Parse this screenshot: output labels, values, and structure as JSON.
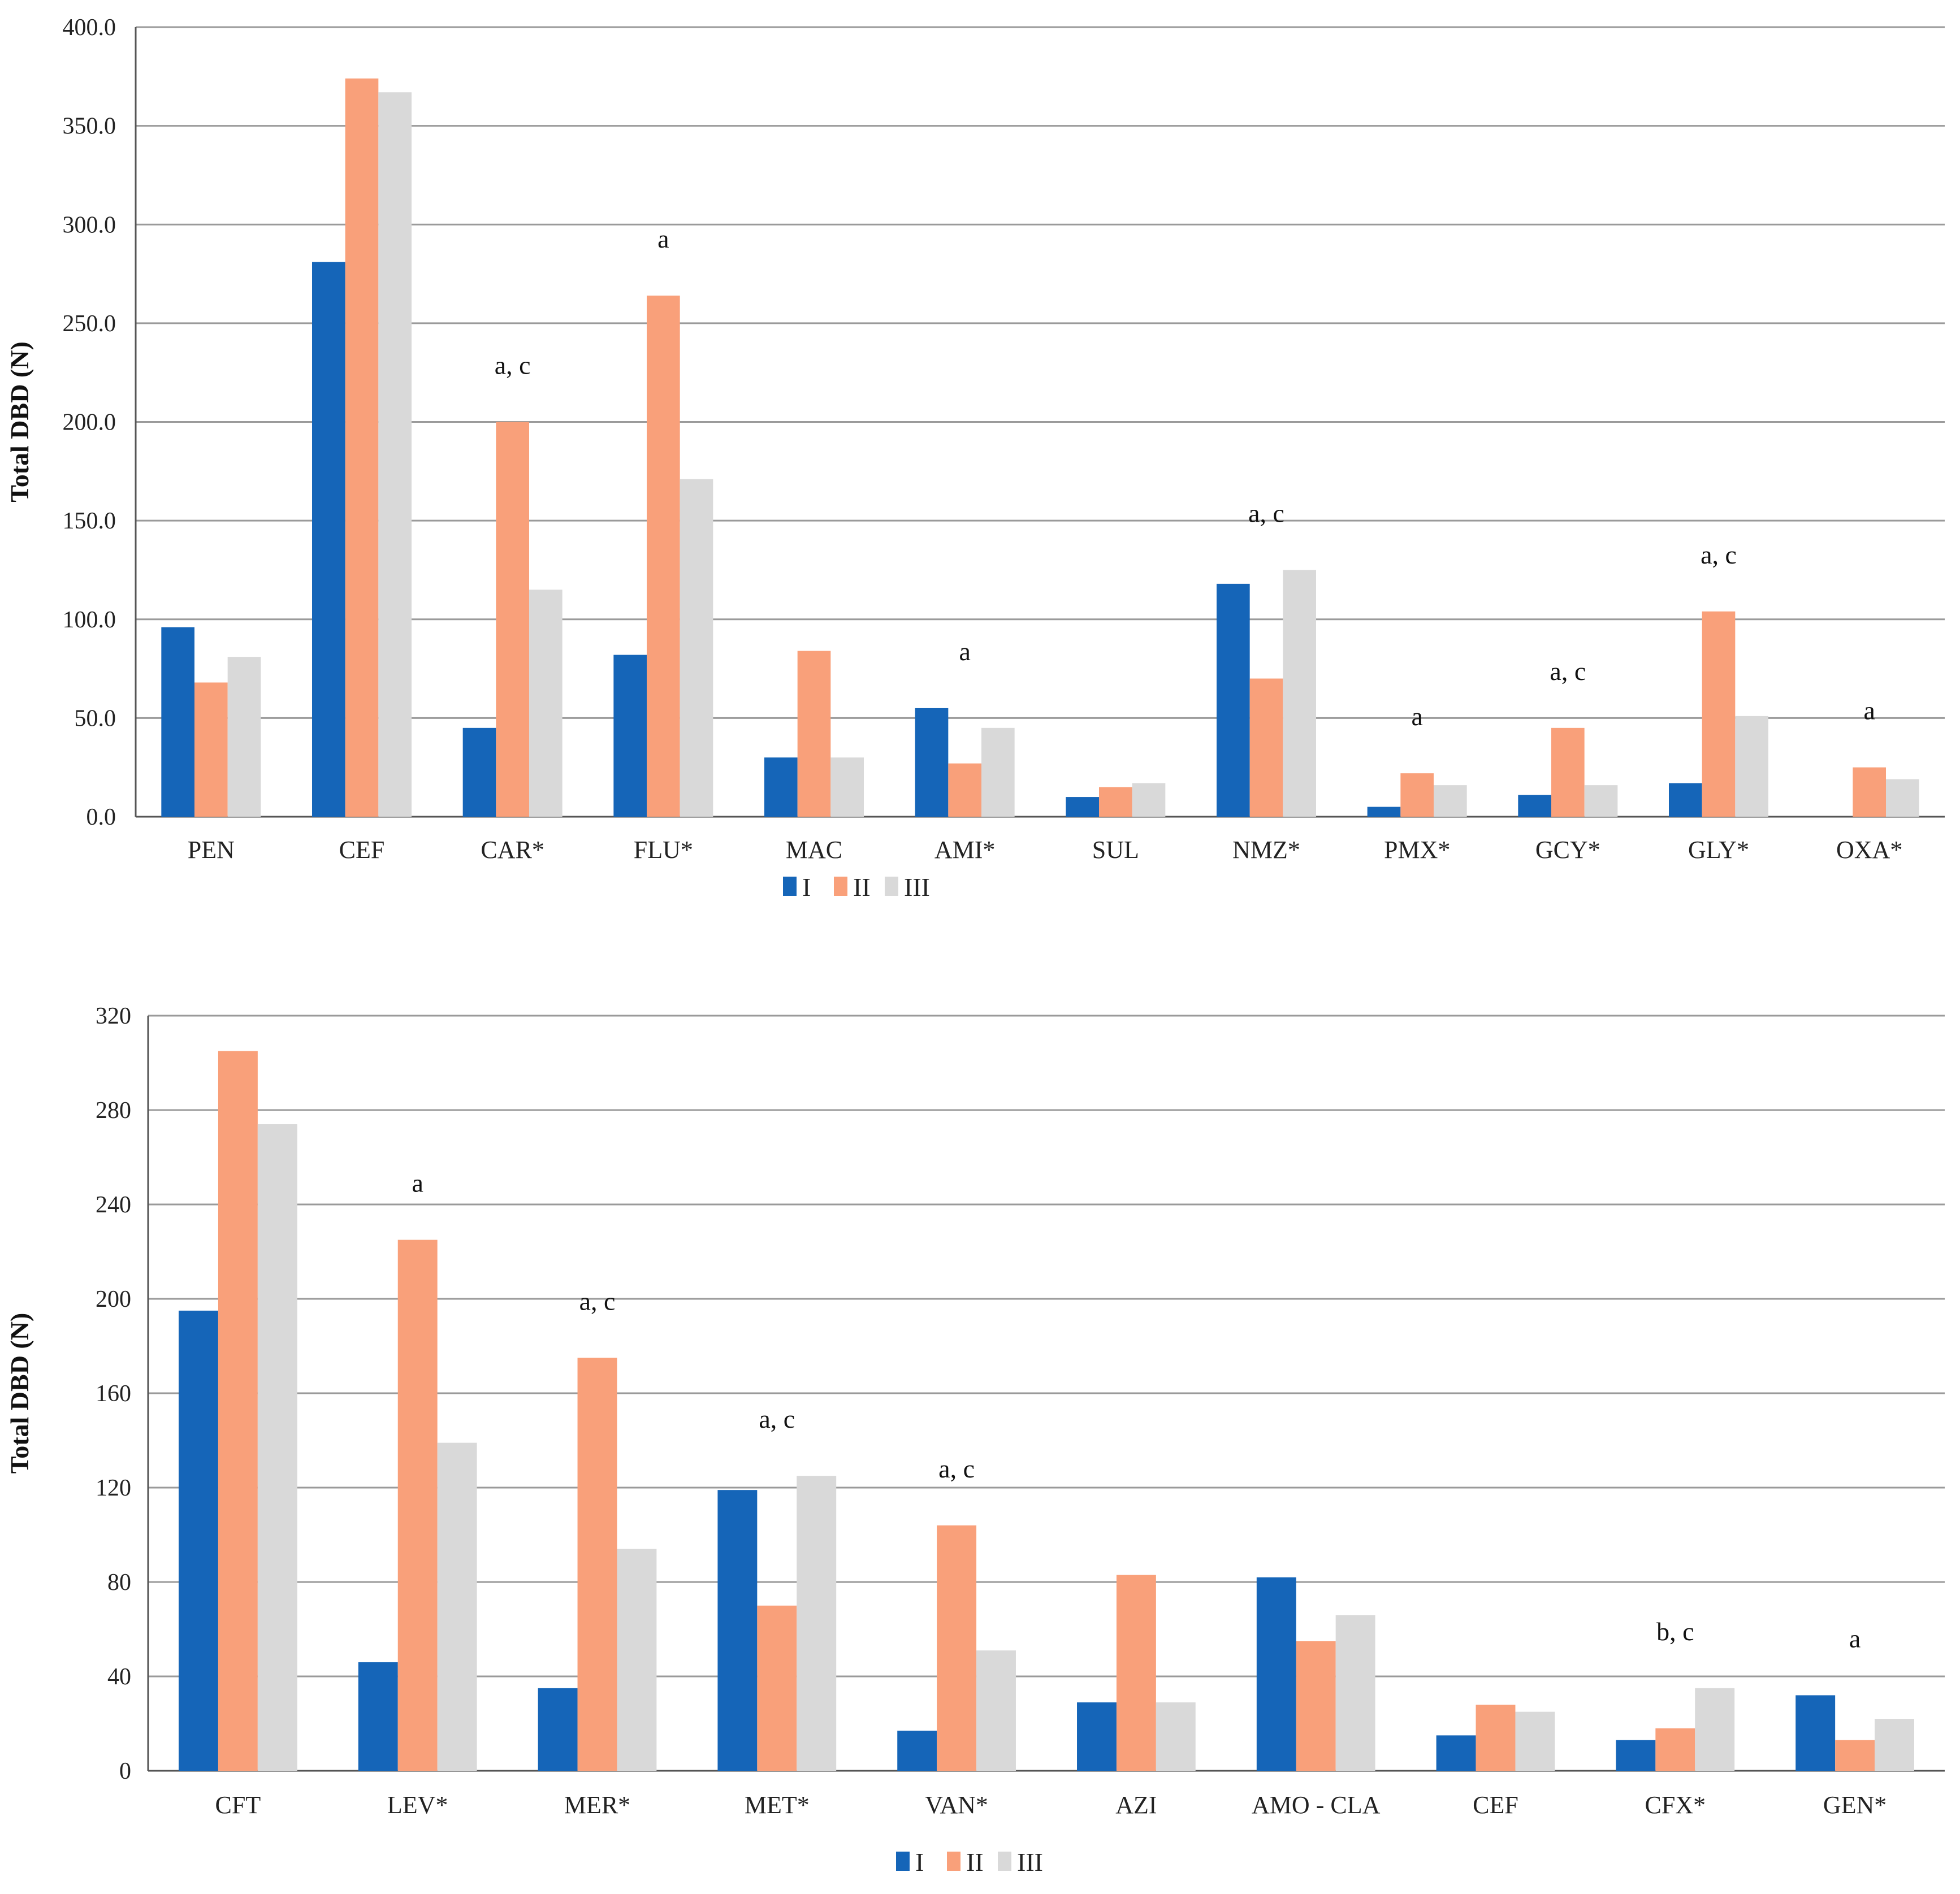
{
  "colors": {
    "I": "#1565b8",
    "II": "#f9a07a",
    "III": "#d9d9d9",
    "grid": "#9a9a9a",
    "axis": "#555555"
  },
  "chart_data": [
    {
      "type": "bar",
      "title": "",
      "xlabel": "",
      "ylabel": "Total DBD (N)",
      "ylim": [
        0,
        400
      ],
      "yticks": [
        "0.0",
        "50.0",
        "100.0",
        "150.0",
        "200.0",
        "250.0",
        "300.0",
        "350.0",
        "400.0"
      ],
      "ytick_values": [
        0,
        50,
        100,
        150,
        200,
        250,
        300,
        350,
        400
      ],
      "grid": true,
      "legend_position": "bottom",
      "categories": [
        "PEN",
        "CEF",
        "CAR*",
        "FLU*",
        "MAC",
        "AMI*",
        "SUL",
        "NMZ*",
        "PMX*",
        "GCY*",
        "GLY*",
        "OXA*"
      ],
      "series": [
        {
          "name": "I",
          "values": [
            96,
            281,
            45,
            82,
            30,
            55,
            10,
            118,
            5,
            11,
            17,
            0
          ]
        },
        {
          "name": "II",
          "values": [
            68,
            374,
            200,
            264,
            84,
            27,
            15,
            70,
            22,
            45,
            104,
            25
          ]
        },
        {
          "name": "III",
          "values": [
            81,
            367,
            115,
            171,
            30,
            45,
            17,
            125,
            16,
            16,
            51,
            19
          ]
        }
      ],
      "annotations": [
        "",
        "",
        "a, c",
        "a",
        "",
        "a",
        "",
        "a, c",
        "a",
        "a, c",
        "a, c",
        "a"
      ]
    },
    {
      "type": "bar",
      "title": "",
      "xlabel": "",
      "ylabel": "Total DBD (N)",
      "ylim": [
        0,
        320
      ],
      "yticks": [
        "0",
        "40",
        "80",
        "120",
        "160",
        "200",
        "240",
        "280",
        "320"
      ],
      "ytick_values": [
        0,
        40,
        80,
        120,
        160,
        200,
        240,
        280,
        320
      ],
      "grid": true,
      "legend_position": "bottom",
      "categories": [
        "CFT",
        "LEV*",
        "MER*",
        "MET*",
        "VAN*",
        "AZI",
        "AMO - CLA",
        "CEF",
        "CFX*",
        "GEN*"
      ],
      "series": [
        {
          "name": "I",
          "values": [
            195,
            46,
            35,
            119,
            17,
            29,
            82,
            15,
            13,
            32
          ]
        },
        {
          "name": "II",
          "values": [
            305,
            225,
            175,
            70,
            104,
            83,
            55,
            28,
            18,
            13
          ]
        },
        {
          "name": "III",
          "values": [
            274,
            139,
            94,
            125,
            51,
            29,
            66,
            25,
            35,
            22
          ]
        }
      ],
      "annotations": [
        "",
        "a",
        "a, c",
        "a, c",
        "a, c",
        "",
        "",
        "",
        "b, c",
        "a"
      ]
    }
  ]
}
